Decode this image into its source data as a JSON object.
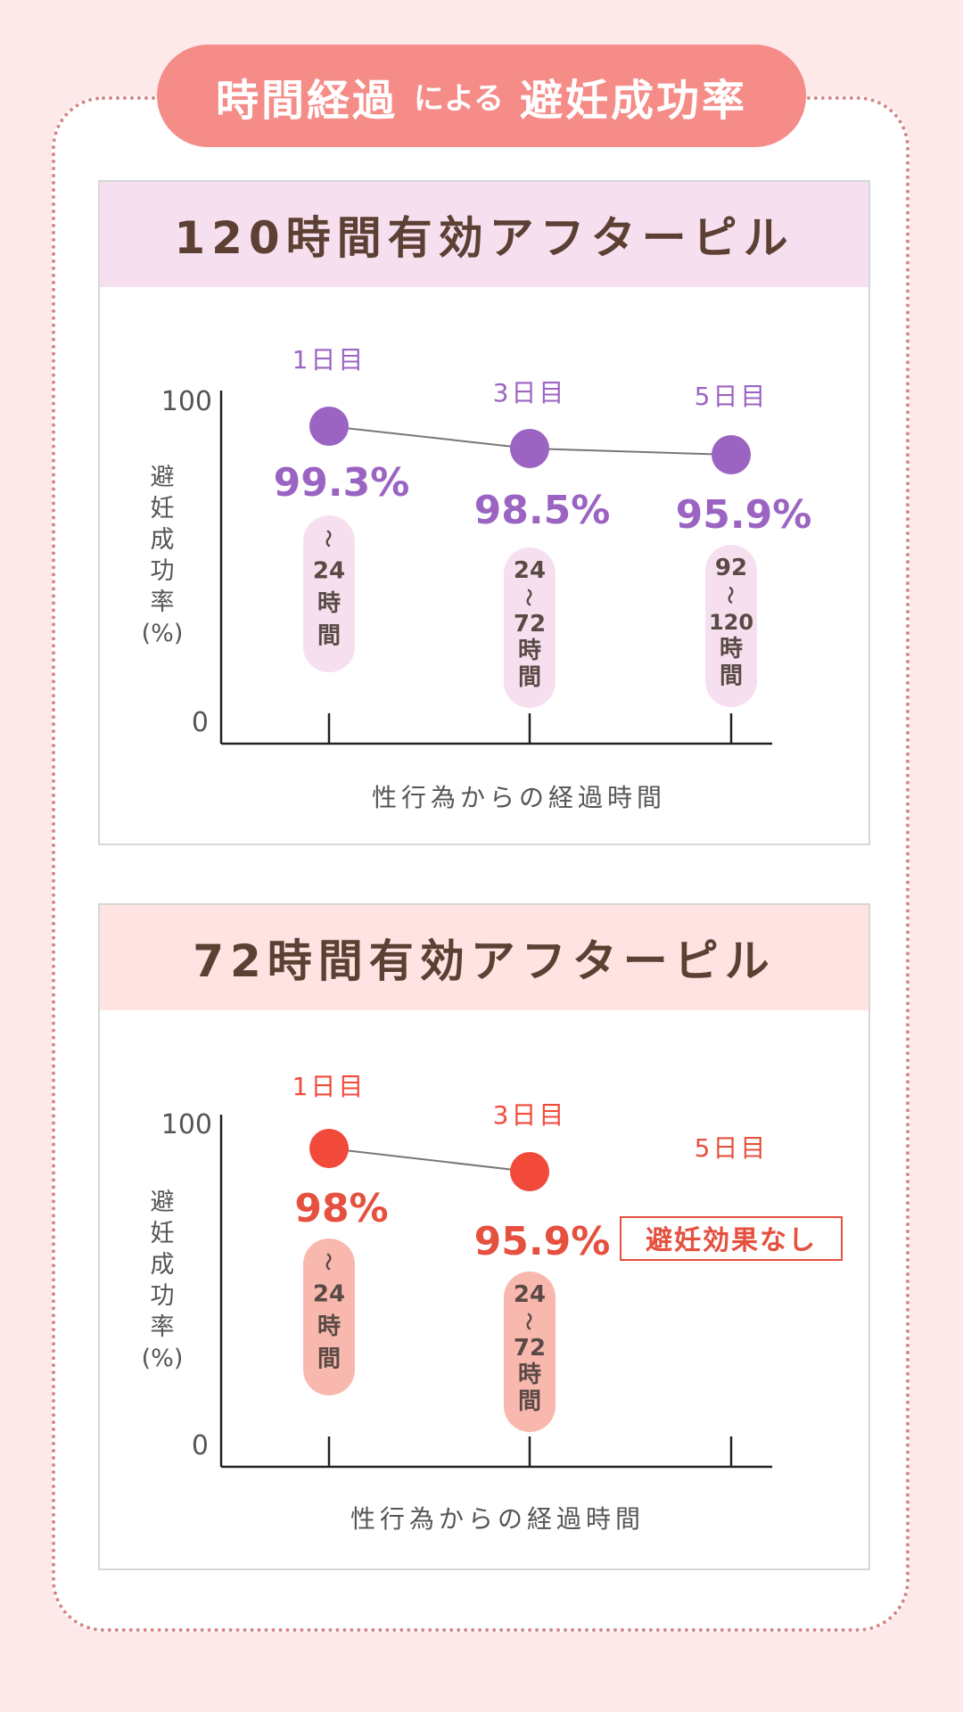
{
  "header": {
    "title_part1": "時間経過",
    "title_part2": "による",
    "title_part3": "避妊成功率"
  },
  "colors": {
    "page_background": "#fde8ea",
    "title_background": "#f58c88",
    "frame_border": "#d98585",
    "purple_series": "#9b64c2",
    "purple_badge": "#f6e0ef",
    "red_series": "#f24a3a",
    "red_label": "#e5503f",
    "red_badge": "#f9b8ae",
    "header_text": "#5c4033"
  },
  "panels": [
    {
      "title": "120時間有効アフターピル",
      "header_color": "#f6e0ef"
    },
    {
      "title": "72時間有効アフターピル",
      "header_color": "#fde3e1"
    }
  ],
  "chart_data": [
    {
      "type": "line",
      "title": "120時間有効アフターピル",
      "ylabel": "避妊成功率(%)",
      "xlabel": "性行為からの経過時間",
      "ylim": [
        0,
        100
      ],
      "y_ticks": [
        "100",
        "0"
      ],
      "grid": false,
      "series_color": "#9b64c2",
      "badge_color": "#f6e0ef",
      "value_color": "#9b64c2",
      "points": [
        {
          "day": "1日目",
          "value": 99.3,
          "label": "99.3%",
          "range": [
            "〜",
            "24",
            "時",
            "間"
          ]
        },
        {
          "day": "3日目",
          "value": 98.5,
          "label": "98.5%",
          "range": [
            "24",
            "〜",
            "72",
            "時",
            "間"
          ]
        },
        {
          "day": "5日目",
          "value": 95.9,
          "label": "95.9%",
          "range": [
            "92",
            "〜",
            "120",
            "時",
            "間"
          ]
        }
      ]
    },
    {
      "type": "line",
      "title": "72時間有効アフターピル",
      "ylabel": "避妊成功率(%)",
      "xlabel": "性行為からの経過時間",
      "ylim": [
        0,
        100
      ],
      "y_ticks": [
        "100",
        "0"
      ],
      "grid": false,
      "series_color": "#f24a3a",
      "badge_color": "#f9b8ae",
      "value_color": "#e5503f",
      "points": [
        {
          "day": "1日目",
          "value": 98,
          "label": "98%",
          "range": [
            "〜",
            "24",
            "時",
            "間"
          ]
        },
        {
          "day": "3日目",
          "value": 95.9,
          "label": "95.9%",
          "range": [
            "24",
            "〜",
            "72",
            "時",
            "間"
          ]
        }
      ],
      "no_effect": {
        "day": "5日目",
        "label": "避妊効果なし"
      }
    }
  ]
}
